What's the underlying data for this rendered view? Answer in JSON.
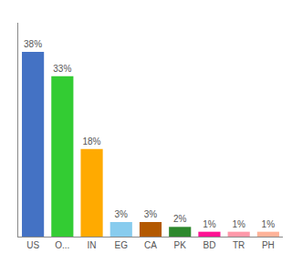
{
  "chart_data": {
    "type": "bar",
    "categories": [
      "US",
      "O...",
      "IN",
      "EG",
      "CA",
      "PK",
      "BD",
      "TR",
      "PH"
    ],
    "values": [
      38,
      33,
      18,
      3,
      3,
      2,
      1,
      1,
      1
    ],
    "value_labels": [
      "38%",
      "33%",
      "18%",
      "3%",
      "3%",
      "2%",
      "1%",
      "1%",
      "1%"
    ],
    "colors": [
      "#4472c4",
      "#33cc33",
      "#ffaa00",
      "#88ccee",
      "#b35900",
      "#2d882d",
      "#ff1493",
      "#ff99aa",
      "#ffb399"
    ],
    "ylim": [
      0,
      44
    ],
    "yticks": [],
    "grid": false,
    "data_labels": true,
    "tick_labels": "x"
  }
}
